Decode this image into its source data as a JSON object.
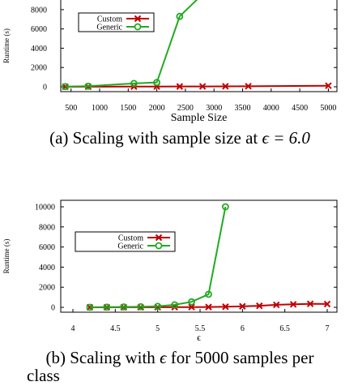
{
  "charts": [
    {
      "caption_text": "(a) Scaling with sample size at ",
      "caption_math": "ϵ = 6.0",
      "chart_data": {
        "type": "line",
        "xlabel": "Sample Size",
        "ylabel": "Runtime (s)",
        "xlim": [
          320,
          5150
        ],
        "ylim": [
          0,
          9000
        ],
        "xticks": [
          500,
          1000,
          1500,
          2000,
          2500,
          3000,
          3500,
          4000,
          4500,
          5000
        ],
        "yticks": [
          0,
          2000,
          4000,
          6000,
          8000
        ],
        "grid": false,
        "legend_position": "top-left",
        "series": [
          {
            "name": "Custom",
            "color": "#c00000",
            "marker": "x",
            "x": [
              400,
              800,
              1600,
              2000,
              2400,
              2800,
              3200,
              3600,
              5000
            ],
            "y": [
              5,
              10,
              20,
              25,
              30,
              35,
              45,
              55,
              110
            ]
          },
          {
            "name": "Generic",
            "color": "#22aa22",
            "marker": "o",
            "x": [
              400,
              800,
              1600,
              2000,
              2400,
              2800
            ],
            "y": [
              20,
              60,
              350,
              450,
              7300,
              9600
            ]
          }
        ]
      }
    },
    {
      "caption_text": "(b) Scaling with ",
      "caption_math": "ϵ",
      "caption_text2": " for 5000 samples per",
      "caption_line2": "class",
      "chart_data": {
        "type": "line",
        "xlabel": "ϵ",
        "ylabel": "Runtime (s)",
        "xlim": [
          4,
          7
        ],
        "ylim": [
          0,
          10000
        ],
        "xticks": [
          4,
          4.5,
          5,
          5.5,
          6,
          6.5,
          7
        ],
        "yticks": [
          0,
          2000,
          4000,
          6000,
          8000,
          10000
        ],
        "grid": false,
        "legend_position": "top-left",
        "series": [
          {
            "name": "Custom",
            "color": "#c00000",
            "marker": "x",
            "x": [
              4.2,
              4.4,
              4.6,
              4.8,
              5.0,
              5.2,
              5.4,
              5.6,
              5.8,
              6.0,
              6.2,
              6.4,
              6.6,
              6.8,
              7.0
            ],
            "y": [
              5,
              5,
              10,
              10,
              15,
              20,
              25,
              30,
              60,
              100,
              150,
              250,
              300,
              350,
              330
            ]
          },
          {
            "name": "Generic",
            "color": "#22aa22",
            "marker": "o",
            "x": [
              4.2,
              4.4,
              4.6,
              4.8,
              5.0,
              5.2,
              5.4,
              5.6,
              5.8
            ],
            "y": [
              10,
              20,
              40,
              60,
              100,
              250,
              550,
              1300,
              10000
            ]
          }
        ]
      }
    }
  ]
}
